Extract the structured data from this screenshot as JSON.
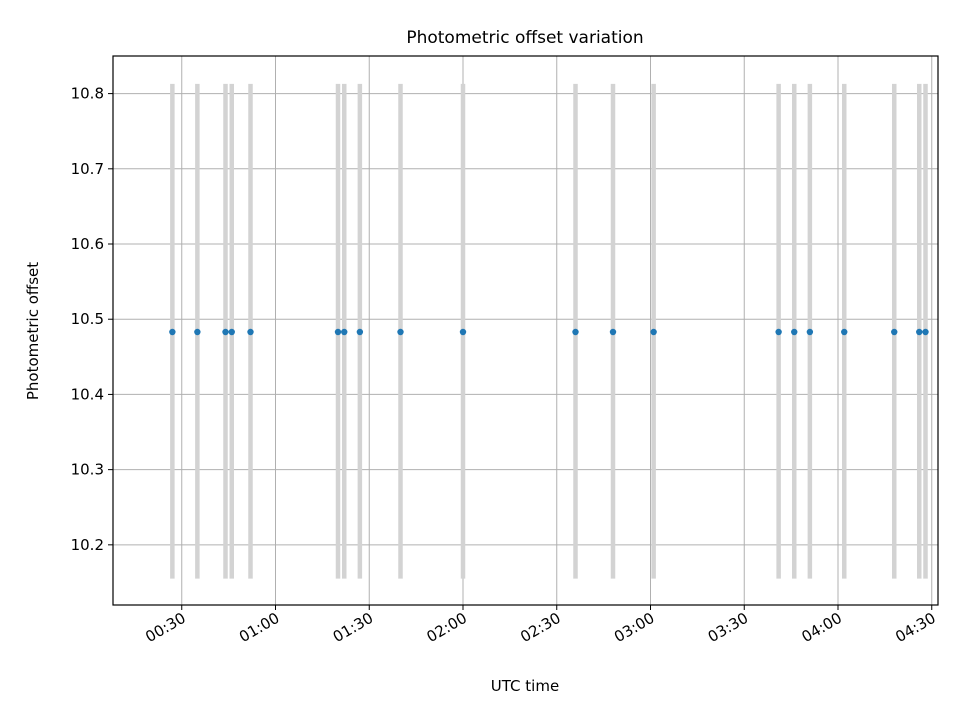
{
  "chart_data": {
    "type": "scatter",
    "title": "Photometric offset variation",
    "xlabel": "UTC time",
    "ylabel": "Photometric offset",
    "x_axis_type": "time",
    "xlim": [
      "00:08",
      "04:32"
    ],
    "ylim": [
      10.12,
      10.85
    ],
    "x_ticks": [
      "00:30",
      "01:00",
      "01:30",
      "02:00",
      "02:30",
      "03:00",
      "03:30",
      "04:00",
      "04:30"
    ],
    "y_ticks": [
      10.2,
      10.3,
      10.4,
      10.5,
      10.6,
      10.7,
      10.8
    ],
    "grid": true,
    "colors": {
      "points": "#1f77b4",
      "error_bars": "#d3d3d3",
      "grid": "#b0b0b0"
    },
    "series": [
      {
        "x": [
          "00:27",
          "00:35",
          "00:44",
          "00:46",
          "00:52",
          "01:20",
          "01:22",
          "01:27",
          "01:40",
          "02:00",
          "02:36",
          "02:48",
          "03:01",
          "03:41",
          "03:46",
          "03:51",
          "04:02",
          "04:18",
          "04:26",
          "04:28"
        ],
        "y": [
          10.483,
          10.483,
          10.483,
          10.483,
          10.483,
          10.483,
          10.483,
          10.483,
          10.483,
          10.483,
          10.483,
          10.483,
          10.483,
          10.483,
          10.483,
          10.483,
          10.483,
          10.483,
          10.483,
          10.483
        ],
        "err_low": 10.155,
        "err_high": 10.813
      }
    ]
  }
}
